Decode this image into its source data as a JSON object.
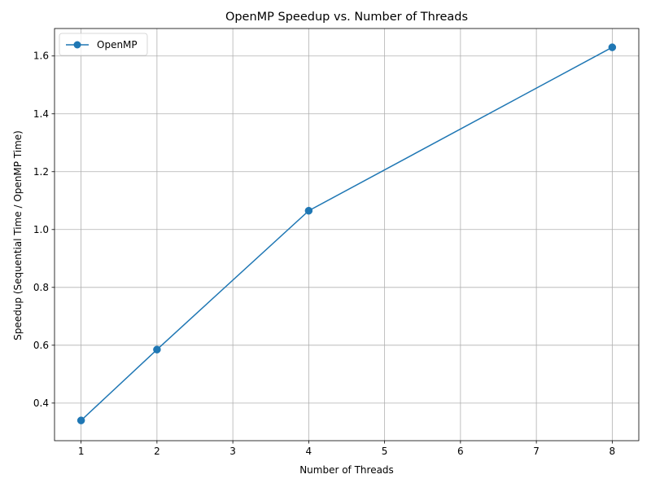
{
  "chart_data": {
    "type": "line",
    "title": "OpenMP Speedup vs. Number of Threads",
    "xlabel": "Number of Threads",
    "ylabel": "Speedup (Sequential Time / OpenMP Time)",
    "xlim": [
      0.65,
      8.35
    ],
    "ylim": [
      0.27,
      1.695
    ],
    "xticks": [
      1,
      2,
      3,
      4,
      5,
      6,
      7,
      8
    ],
    "yticks": [
      0.4,
      0.6,
      0.8,
      1.0,
      1.2,
      1.4,
      1.6
    ],
    "xtick_labels": [
      "1",
      "2",
      "3",
      "4",
      "5",
      "6",
      "7",
      "8"
    ],
    "ytick_labels": [
      "0.4",
      "0.6",
      "0.8",
      "1.0",
      "1.2",
      "1.4",
      "1.6"
    ],
    "grid": true,
    "legend_position": "upper-left",
    "series": [
      {
        "name": "OpenMP",
        "color": "#1f77b4",
        "marker": "circle",
        "x": [
          1,
          2,
          4,
          8
        ],
        "y": [
          0.34,
          0.585,
          1.065,
          1.63
        ]
      }
    ]
  }
}
